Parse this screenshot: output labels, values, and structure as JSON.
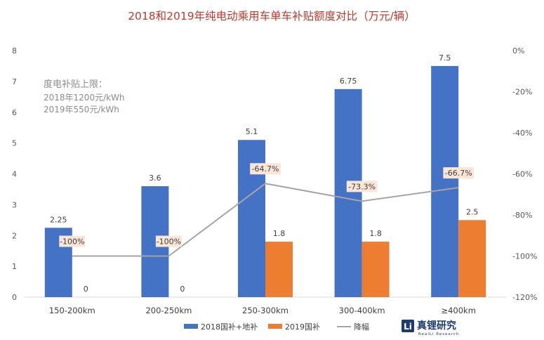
{
  "chart_data": {
    "type": "bar",
    "title": "2018和2019年纯电动乘用车单车补贴额度对比（万元/辆）",
    "categories": [
      "150-200km",
      "200-250km",
      "250-300km",
      "300-400km",
      "≥400km"
    ],
    "series": [
      {
        "name": "2018国补+地补",
        "type": "bar",
        "axis": "left",
        "color": "#4472C4",
        "values": [
          2.25,
          3.6,
          5.1,
          6.75,
          7.5
        ],
        "labels": [
          "2.25",
          "3.6",
          "5.1",
          "6.75",
          "7.5"
        ]
      },
      {
        "name": "2019国补",
        "type": "bar",
        "axis": "left",
        "color": "#ED7D31",
        "values": [
          0,
          0,
          1.8,
          1.8,
          2.5
        ],
        "labels": [
          "0",
          "0",
          "1.8",
          "1.8",
          "2.5"
        ]
      },
      {
        "name": "降幅",
        "type": "line",
        "axis": "right",
        "color": "#A5A5A5",
        "values": [
          -100,
          -100,
          -64.7,
          -73.3,
          -66.7
        ],
        "labels": [
          "-100%",
          "-100%",
          "-64.7%",
          "-73.3%",
          "-66.7%"
        ]
      }
    ],
    "y_left": {
      "ylim": [
        0,
        8
      ],
      "ticks": [
        "0",
        "1",
        "2",
        "3",
        "4",
        "5",
        "6",
        "7",
        "8"
      ]
    },
    "y_right": {
      "ylim": [
        -120,
        0
      ],
      "ticks": [
        "0%",
        "-20%",
        "-40%",
        "-60%",
        "-80%",
        "-100%",
        "-120%"
      ]
    },
    "grid": false,
    "legend": "bottom"
  },
  "annotation": {
    "line1": "度电补贴上限：",
    "line2": "2018年1200元/kWh",
    "line3": "2019年550元/kWh"
  },
  "logo": {
    "name": "真锂研究",
    "sub": "RealLi Research"
  }
}
